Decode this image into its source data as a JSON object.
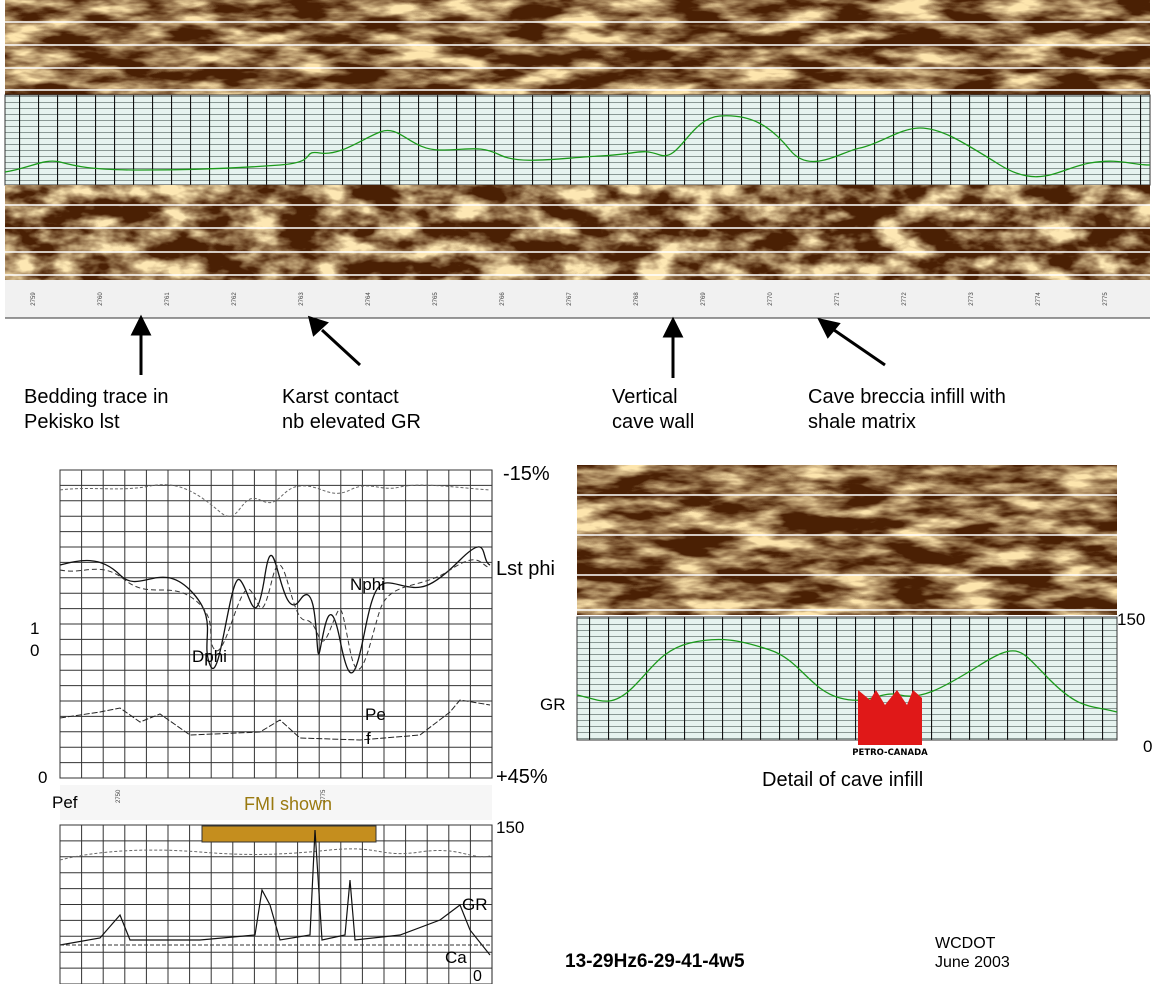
{
  "top_strip": {
    "depths": [
      "2759",
      "2760",
      "2761",
      "2762",
      "2763",
      "2764",
      "2765",
      "2766",
      "2767",
      "2768",
      "2769",
      "2770",
      "2771",
      "2772",
      "2773",
      "2774",
      "2775"
    ]
  },
  "annotations": [
    {
      "lines": [
        "Bedding trace in",
        "Pekisko lst"
      ]
    },
    {
      "lines": [
        "Karst contact",
        "nb elevated GR"
      ]
    },
    {
      "lines": [
        "Vertical",
        "cave wall"
      ]
    },
    {
      "lines": [
        "Cave breccia infill with",
        "shale matrix"
      ]
    }
  ],
  "left_log": {
    "top_right": "-15%",
    "lst_phi": "Lst phi",
    "nphi": "Nphi",
    "dphi": "Dphi",
    "left_scale": [
      "1",
      "0"
    ],
    "pef_curve": [
      "Pe",
      "f"
    ],
    "left_zero": "0",
    "bottom_right": "+45%",
    "pef": "Pef",
    "depths": [
      "2750",
      "2775"
    ],
    "fmi_shown": "FMI shown",
    "gr_max": "150",
    "gr": "GR",
    "ca": "Ca",
    "gr_min": "0"
  },
  "detail": {
    "gr_max": "150",
    "gr": "GR",
    "gr_min": "0",
    "caption": "Detail of cave infill"
  },
  "well": "13-29Hz6-29-41-4w5",
  "logo": "PETRO-CANADA",
  "credit": [
    "WCDOT",
    "June 2003"
  ]
}
